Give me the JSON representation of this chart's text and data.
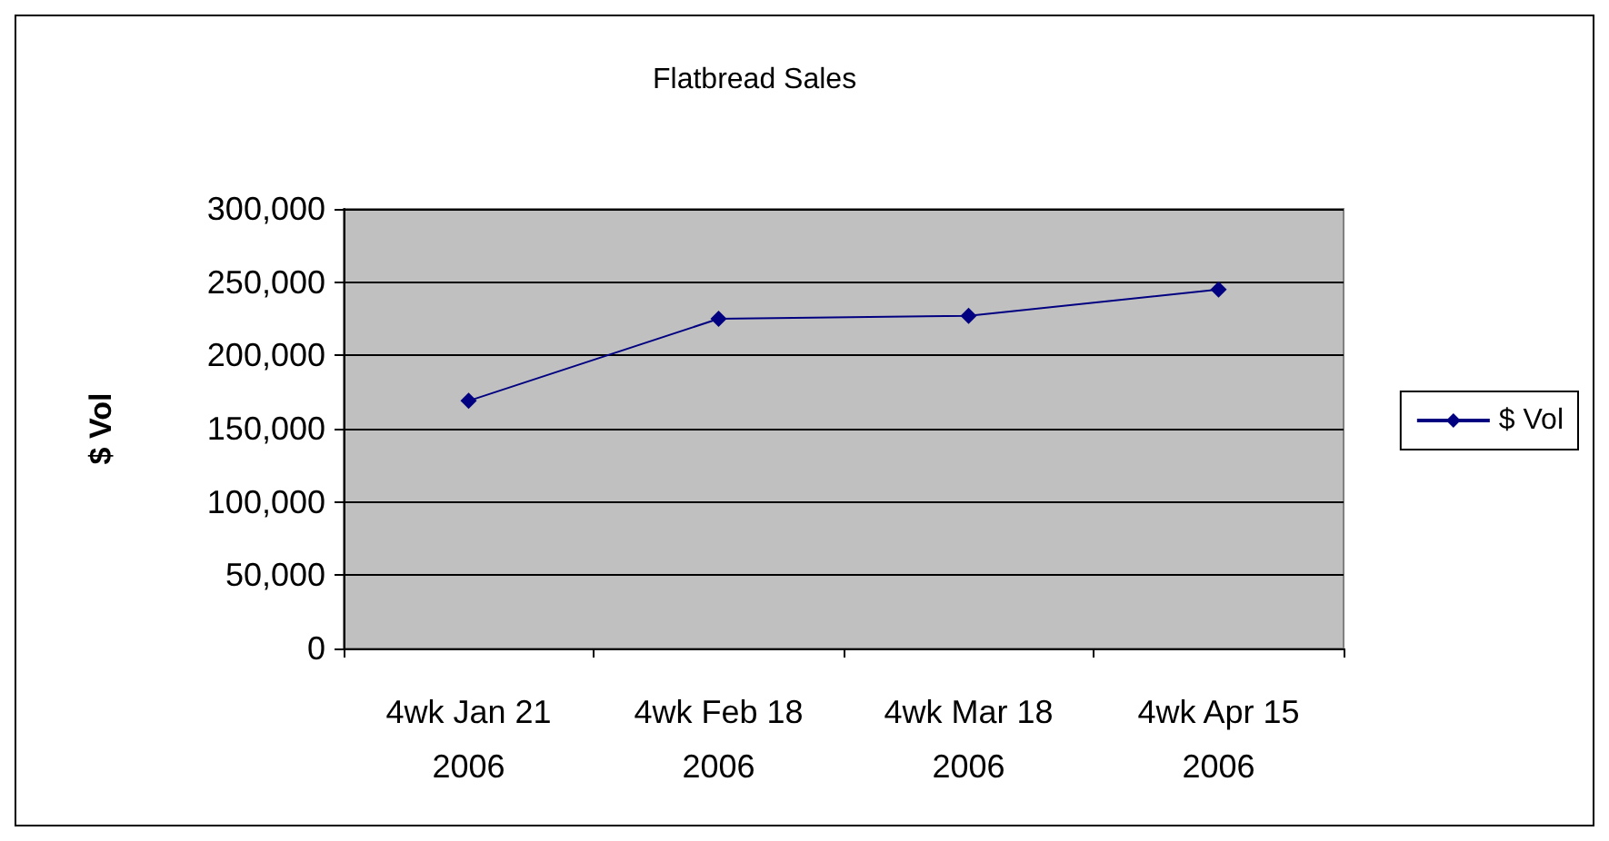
{
  "chart_data": {
    "type": "line",
    "title": "Flatbread Sales",
    "ylabel": "$ Vol",
    "categories": [
      "4wk Jan 21\n2006",
      "4wk Feb 18\n2006",
      "4wk Mar 18\n2006",
      "4wk Apr 15\n2006"
    ],
    "series": [
      {
        "name": "$ Vol",
        "color": "#000080",
        "values": [
          169000,
          225000,
          227000,
          245000
        ]
      }
    ],
    "ylim": [
      0,
      300000
    ],
    "yticks": [
      0,
      {
        "value": 50000,
        "label": "50,000"
      },
      {
        "value": 100000,
        "label": "100,000"
      },
      {
        "value": 150000,
        "label": "150,000"
      },
      {
        "value": 200000,
        "label": "200,000"
      },
      {
        "value": 250000,
        "label": "250,000"
      },
      {
        "value": 300000,
        "label": "300,000"
      }
    ],
    "grid": "y",
    "legend": "right",
    "marker": "diamond",
    "line_style": "solid"
  }
}
